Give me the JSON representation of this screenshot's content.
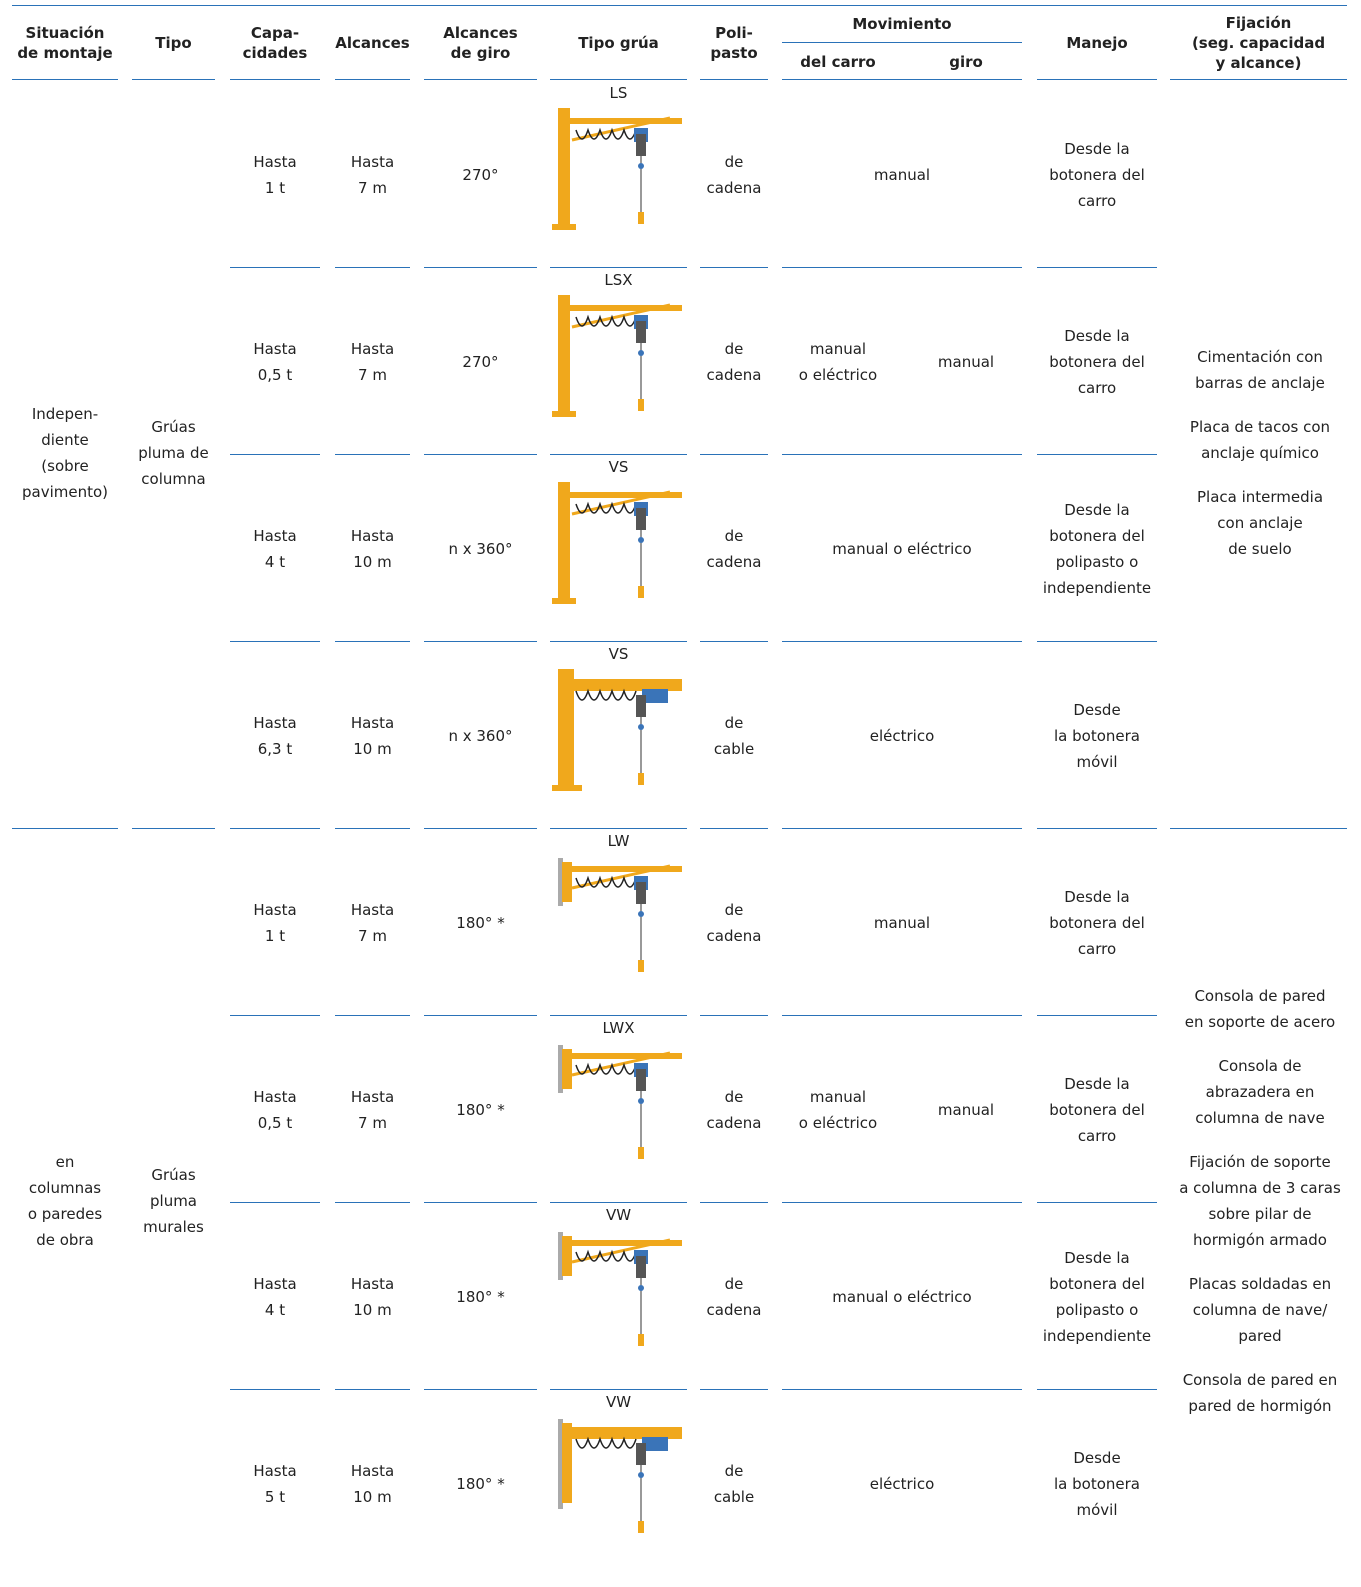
{
  "header": {
    "situacion": "Situación\nde montaje",
    "tipo": "Tipo",
    "capacidades": "Capa-\ncidades",
    "alcances": "Alcances",
    "alcances_giro": "Alcances\nde giro",
    "tipo_grua": "Tipo grúa",
    "polipasto": "Poli-\npasto",
    "movimiento": "Movimiento",
    "del_carro": "del carro",
    "giro": "giro",
    "manejo": "Manejo",
    "fijacion": "Fijación\n(seg. capacidad\ny alcance)"
  },
  "groups": [
    {
      "situacion": "Indepen-\ndiente\n(sobre\npavimento)",
      "tipo": "Grúas\npluma de\ncolumna",
      "fijacion": [
        "Cimentación con\nbarras de anclaje",
        "Placa de tacos con\nanclaje químico",
        "Placa intermedia\ncon anclaje\nde suelo"
      ],
      "rows": [
        {
          "grua": "LS",
          "capacidad": "Hasta\n1 t",
          "alcance": "Hasta\n7 m",
          "giro": "270°",
          "polipasto": "de\ncadena",
          "movimiento": "manual",
          "manejo": "Desde la\nbotonera del\ncarro"
        },
        {
          "grua": "LSX",
          "capacidad": "Hasta\n0,5 t",
          "alcance": "Hasta\n7 m",
          "giro": "270°",
          "polipasto": "de\ncadena",
          "movimiento": {
            "del_carro": "manual\no eléctrico",
            "giro": "manual"
          },
          "manejo": "Desde la\nbotonera del\ncarro"
        },
        {
          "grua": "VS",
          "capacidad": "Hasta\n4 t",
          "alcance": "Hasta\n10 m",
          "giro": "n x 360°",
          "polipasto": "de\ncadena",
          "movimiento": "manual o eléctrico",
          "manejo": "Desde la\nbotonera del\npolipasto o\nindependiente"
        },
        {
          "grua": "VS",
          "capacidad": "Hasta\n6,3 t",
          "alcance": "Hasta\n10 m",
          "giro": "n x 360°",
          "polipasto": "de\ncable",
          "movimiento": "eléctrico",
          "manejo": "Desde\nla botonera\nmóvil"
        }
      ]
    },
    {
      "situacion": "en\ncolumnas\no paredes\nde obra",
      "tipo": "Grúas\npluma\nmurales",
      "fijacion": [
        "Consola de pared\nen soporte de acero",
        "Consola de\nabrazadera en\ncolumna de nave",
        "Fijación de soporte\na columna de 3 caras\nsobre pilar de\nhormigón armado",
        "Placas soldadas en\ncolumna de nave/\npared",
        "Consola de pared en\npared de hormigón"
      ],
      "rows": [
        {
          "grua": "LW",
          "capacidad": "Hasta\n1 t",
          "alcance": "Hasta\n7 m",
          "giro": "180° *",
          "polipasto": "de\ncadena",
          "movimiento": "manual",
          "manejo": "Desde la\nbotonera del\ncarro"
        },
        {
          "grua": "LWX",
          "capacidad": "Hasta\n0,5 t",
          "alcance": "Hasta\n7 m",
          "giro": "180° *",
          "polipasto": "de\ncadena",
          "movimiento": {
            "del_carro": "manual\no eléctrico",
            "giro": "manual"
          },
          "manejo": "Desde la\nbotonera del\ncarro"
        },
        {
          "grua": "VW",
          "capacidad": "Hasta\n4 t",
          "alcance": "Hasta\n10 m",
          "giro": "180° *",
          "polipasto": "de\ncadena",
          "movimiento": "manual o eléctrico",
          "manejo": "Desde la\nbotonera del\npolipasto o\nindependiente"
        },
        {
          "grua": "VW",
          "capacidad": "Hasta\n5 t",
          "alcance": "Hasta\n10 m",
          "giro": "180° *",
          "polipasto": "de\ncable",
          "movimiento": "eléctrico",
          "manejo": "Desde\nla botonera\nmóvil"
        }
      ]
    }
  ]
}
